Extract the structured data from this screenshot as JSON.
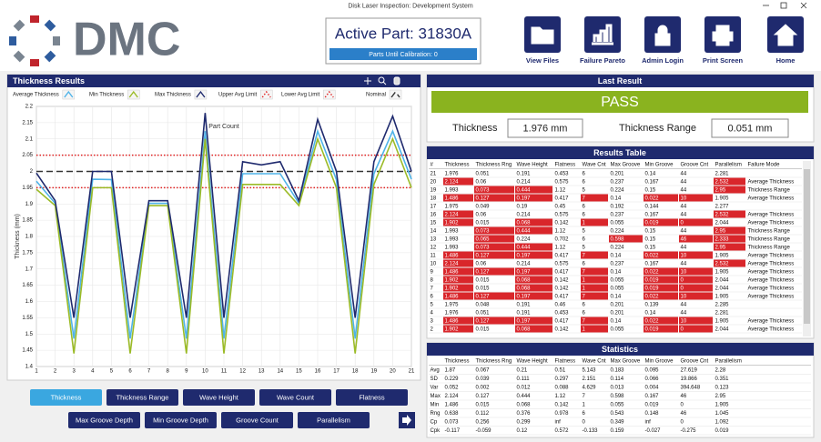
{
  "window_title": "Disk Laser Inspection: Development System",
  "header": {
    "logo": "DMC",
    "active_part": "Active Part: 31830A",
    "calibration": "Parts Until Calibration: 0",
    "nav": [
      "View Files",
      "Failure Pareto",
      "Admin Login",
      "Print Screen",
      "Home"
    ]
  },
  "chart_panel": {
    "title": "Thickness Results"
  },
  "chart_data": {
    "type": "line",
    "x": [
      1,
      2,
      3,
      4,
      5,
      6,
      7,
      8,
      9,
      10,
      11,
      12,
      13,
      14,
      15,
      16,
      17,
      18,
      19,
      20,
      21
    ],
    "xlim": [
      1,
      21
    ],
    "xticks": [
      1,
      2,
      3,
      4,
      5,
      6,
      7,
      8,
      9,
      10,
      11,
      12,
      13,
      14,
      15,
      16,
      17,
      18,
      19,
      20,
      21
    ],
    "ylim": [
      1.4,
      2.2
    ],
    "yticks": [
      1.4,
      1.45,
      1.5,
      1.55,
      1.6,
      1.65,
      1.7,
      1.75,
      1.8,
      1.85,
      1.9,
      1.95,
      2,
      2.05,
      2.1,
      2.15,
      2.2
    ],
    "x_label": "Part Count",
    "y_label": "Thickness (mm)",
    "grid": true,
    "series": [
      {
        "name": "Average Thickness",
        "color": "#4fb3e8",
        "values": [
          1.97,
          1.902,
          1.486,
          1.976,
          1.975,
          1.486,
          1.902,
          1.902,
          1.486,
          2.124,
          1.486,
          1.993,
          1.993,
          1.993,
          1.902,
          2.124,
          1.975,
          1.486,
          1.993,
          2.124,
          1.976
        ]
      },
      {
        "name": "Min Thickness",
        "color": "#9bbb27",
        "values": [
          1.945,
          1.895,
          1.44,
          1.95,
          1.95,
          1.44,
          1.895,
          1.895,
          1.44,
          2.1,
          1.44,
          1.96,
          1.96,
          1.96,
          1.895,
          2.1,
          1.95,
          1.44,
          1.96,
          2.1,
          1.95
        ]
      },
      {
        "name": "Max Thickness",
        "color": "#1f2a6e",
        "values": [
          1.995,
          1.91,
          1.55,
          2.0,
          2.0,
          1.55,
          1.91,
          1.91,
          1.55,
          2.18,
          1.55,
          2.03,
          2.02,
          2.03,
          1.91,
          2.16,
          2.0,
          1.55,
          2.03,
          2.17,
          2.0
        ]
      }
    ],
    "reference_lines": [
      {
        "name": "Upper Avg Limit",
        "color": "#e02020",
        "dash": "dotted",
        "value": 2.05
      },
      {
        "name": "Lower Avg Limit",
        "color": "#e02020",
        "dash": "dotted",
        "value": 1.95
      },
      {
        "name": "Nominal",
        "color": "#333333",
        "dash": "dashed",
        "value": 2
      }
    ]
  },
  "metric_buttons": {
    "items": [
      "Thickness",
      "Thickness Range",
      "Wave Height",
      "Wave Count",
      "Flatness",
      "Max Groove Depth",
      "Min Groove Depth",
      "Groove Count",
      "Parallelism"
    ],
    "selected": 0
  },
  "last_result": {
    "title": "Last Result",
    "status": "PASS",
    "thickness_label": "Thickness",
    "thickness": "1.976 mm",
    "range_label": "Thickness Range",
    "range": "0.051 mm"
  },
  "results_table": {
    "title": "Results Table",
    "columns": [
      "#",
      "Thickness",
      "Thickness Rng",
      "Wave Height",
      "Flatness",
      "Wave Cnt",
      "Max Groove",
      "Min Groove",
      "Groove Cnt",
      "Parallelism",
      "Failure Mode"
    ],
    "rows": [
      {
        "cells": [
          21,
          1.976,
          0.051,
          0.191,
          0.453,
          6,
          0.201,
          0.14,
          44,
          2.281
        ],
        "flagged": []
      },
      {
        "cells": [
          20,
          2.124,
          0.06,
          0.214,
          0.575,
          6,
          0.237,
          0.167,
          44,
          2.532,
          "Average Thickness"
        ],
        "flagged": [
          1,
          9
        ]
      },
      {
        "cells": [
          19,
          1.993,
          0.073,
          0.444,
          1.12,
          5,
          0.224,
          0.15,
          44,
          2.95,
          "Thickness Range"
        ],
        "flagged": [
          2,
          3,
          9
        ]
      },
      {
        "cells": [
          18,
          1.486,
          0.127,
          0.197,
          0.417,
          7,
          0.14,
          0.022,
          10,
          1.905,
          "Average Thickness"
        ],
        "flagged": [
          1,
          2,
          3,
          5,
          7,
          8
        ]
      },
      {
        "cells": [
          17,
          1.975,
          0.049,
          0.19,
          0.45,
          6,
          0.192,
          0.144,
          44,
          2.277
        ],
        "flagged": []
      },
      {
        "cells": [
          16,
          2.124,
          0.06,
          0.214,
          0.575,
          6,
          0.237,
          0.167,
          44,
          2.532,
          "Average Thickness"
        ],
        "flagged": [
          1,
          9
        ]
      },
      {
        "cells": [
          15,
          1.902,
          0.015,
          0.068,
          0.142,
          1,
          0.055,
          0.019,
          0,
          2.044,
          "Average Thickness"
        ],
        "flagged": [
          1,
          3,
          5,
          7,
          8
        ]
      },
      {
        "cells": [
          14,
          1.993,
          0.073,
          0.444,
          1.12,
          5,
          0.224,
          0.15,
          44,
          2.95,
          "Thickness Range"
        ],
        "flagged": [
          2,
          3,
          9
        ]
      },
      {
        "cells": [
          13,
          1.993,
          0.065,
          0.224,
          0.702,
          6,
          0.598,
          0.15,
          46,
          2.333,
          "Thickness Range"
        ],
        "flagged": [
          2,
          6,
          8,
          9
        ]
      },
      {
        "cells": [
          12,
          1.993,
          0.073,
          0.444,
          1.12,
          5,
          0.224,
          0.15,
          44,
          2.95,
          "Thickness Range"
        ],
        "flagged": [
          2,
          3,
          9
        ]
      },
      {
        "cells": [
          11,
          1.486,
          0.127,
          0.197,
          0.417,
          7,
          0.14,
          0.022,
          10,
          1.905,
          "Average Thickness"
        ],
        "flagged": [
          1,
          2,
          3,
          5,
          7,
          8
        ]
      },
      {
        "cells": [
          10,
          2.124,
          0.06,
          0.214,
          0.575,
          6,
          0.237,
          0.167,
          44,
          2.532,
          "Average Thickness"
        ],
        "flagged": [
          1,
          9
        ]
      },
      {
        "cells": [
          9,
          1.486,
          0.127,
          0.197,
          0.417,
          7,
          0.14,
          0.022,
          10,
          1.905,
          "Average Thickness"
        ],
        "flagged": [
          1,
          2,
          3,
          5,
          7,
          8
        ]
      },
      {
        "cells": [
          8,
          1.902,
          0.015,
          0.068,
          0.142,
          1,
          0.055,
          0.019,
          0,
          2.044,
          "Average Thickness"
        ],
        "flagged": [
          1,
          3,
          5,
          7,
          8
        ]
      },
      {
        "cells": [
          7,
          1.902,
          0.015,
          0.068,
          0.142,
          1,
          0.055,
          0.019,
          0,
          2.044,
          "Average Thickness"
        ],
        "flagged": [
          1,
          3,
          5,
          7,
          8
        ]
      },
      {
        "cells": [
          6,
          1.486,
          0.127,
          0.197,
          0.417,
          7,
          0.14,
          0.022,
          10,
          1.905,
          "Average Thickness"
        ],
        "flagged": [
          1,
          2,
          3,
          5,
          7,
          8
        ]
      },
      {
        "cells": [
          5,
          1.975,
          0.048,
          0.191,
          0.46,
          6,
          0.201,
          0.139,
          44,
          2.285
        ],
        "flagged": []
      },
      {
        "cells": [
          4,
          1.976,
          0.051,
          0.191,
          0.453,
          6,
          0.201,
          0.14,
          44,
          2.281
        ],
        "flagged": []
      },
      {
        "cells": [
          3,
          1.486,
          0.127,
          0.197,
          0.417,
          7,
          0.14,
          0.022,
          10,
          1.905,
          "Average Thickness"
        ],
        "flagged": [
          1,
          2,
          3,
          5,
          7,
          8
        ]
      },
      {
        "cells": [
          2,
          1.902,
          0.015,
          0.068,
          0.142,
          1,
          0.055,
          0.019,
          0,
          2.044,
          "Average Thickness"
        ],
        "flagged": [
          1,
          3,
          5,
          7,
          8
        ]
      }
    ]
  },
  "statistics": {
    "title": "Statistics",
    "columns": [
      "Thickness",
      "Thickness Rng",
      "Wave Height",
      "Flatness",
      "Wave Cnt",
      "Max Groove",
      "Min Groove",
      "Groove Cnt",
      "Parallelism"
    ],
    "rows": [
      [
        "Avg",
        1.87,
        0.067,
        0.21,
        0.51,
        5.143,
        0.183,
        0.095,
        27.619,
        2.28
      ],
      [
        "SD",
        0.229,
        0.039,
        0.111,
        0.297,
        2.151,
        0.114,
        0.066,
        19.866,
        0.351
      ],
      [
        "Var",
        0.052,
        0.002,
        0.012,
        0.088,
        4.629,
        0.013,
        0.004,
        394.648,
        0.123
      ],
      [
        "Max",
        2.124,
        0.127,
        0.444,
        1.12,
        7,
        0.598,
        0.167,
        46,
        2.95
      ],
      [
        "Min",
        1.486,
        0.015,
        0.068,
        0.142,
        1,
        0.055,
        0.019,
        0,
        1.905
      ],
      [
        "Rng",
        0.638,
        0.112,
        0.376,
        0.978,
        6,
        0.543,
        0.148,
        46,
        1.045
      ],
      [
        "Cp",
        0.073,
        0.256,
        0.299,
        "inf",
        0,
        0.349,
        "inf",
        0,
        1.092
      ],
      [
        "Cpk",
        -0.117,
        -0.059,
        0.12,
        0.572,
        -0.133,
        0.159,
        -0.027,
        -0.275,
        0.019
      ]
    ]
  }
}
